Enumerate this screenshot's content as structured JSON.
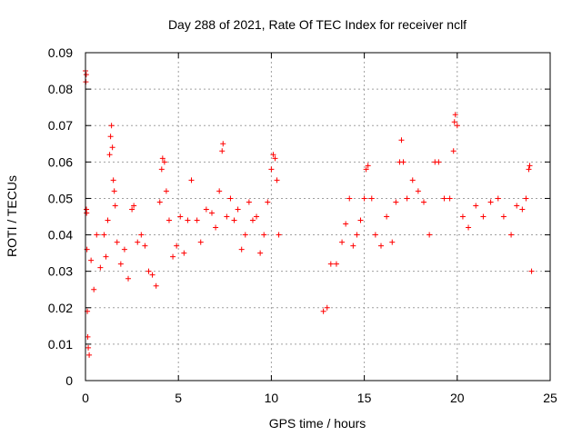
{
  "chart_data": {
    "type": "scatter",
    "title": "Day 288 of 2021, Rate Of TEC Index for receiver nclf",
    "xlabel": "GPS time / hours",
    "ylabel": "ROTI / TECUs",
    "xlim": [
      0,
      25
    ],
    "ylim": [
      0,
      0.09
    ],
    "x_ticks": [
      0,
      5,
      10,
      15,
      20,
      25
    ],
    "x_tick_labels": [
      "0",
      "5",
      "10",
      "15",
      "20",
      "25"
    ],
    "y_ticks": [
      0,
      0.01,
      0.02,
      0.03,
      0.04,
      0.05,
      0.06,
      0.07,
      0.08,
      0.09
    ],
    "y_tick_labels": [
      "0",
      "0.01",
      "0.02",
      "0.03",
      "0.04",
      "0.05",
      "0.06",
      "0.07",
      "0.08",
      "0.09"
    ],
    "grid": true,
    "marker": "+",
    "series_color": "#ff0000",
    "data_gap_hours": [
      10.5,
      12.7
    ],
    "series": [
      {
        "name": "ROTI",
        "points": [
          [
            0.0,
            0.085
          ],
          [
            0.02,
            0.082
          ],
          [
            0.04,
            0.084
          ],
          [
            0.05,
            0.047
          ],
          [
            0.06,
            0.046
          ],
          [
            0.08,
            0.036
          ],
          [
            0.1,
            0.019
          ],
          [
            0.12,
            0.012
          ],
          [
            0.15,
            0.009
          ],
          [
            0.2,
            0.007
          ],
          [
            0.3,
            0.033
          ],
          [
            0.45,
            0.025
          ],
          [
            0.6,
            0.04
          ],
          [
            0.8,
            0.031
          ],
          [
            1.0,
            0.04
          ],
          [
            1.1,
            0.034
          ],
          [
            1.2,
            0.044
          ],
          [
            1.3,
            0.062
          ],
          [
            1.35,
            0.067
          ],
          [
            1.4,
            0.07
          ],
          [
            1.45,
            0.064
          ],
          [
            1.5,
            0.055
          ],
          [
            1.55,
            0.052
          ],
          [
            1.6,
            0.048
          ],
          [
            1.7,
            0.038
          ],
          [
            1.9,
            0.032
          ],
          [
            2.1,
            0.036
          ],
          [
            2.3,
            0.028
          ],
          [
            2.5,
            0.047
          ],
          [
            2.6,
            0.048
          ],
          [
            2.8,
            0.038
          ],
          [
            3.0,
            0.04
          ],
          [
            3.2,
            0.037
          ],
          [
            3.4,
            0.03
          ],
          [
            3.6,
            0.029
          ],
          [
            3.8,
            0.026
          ],
          [
            4.0,
            0.049
          ],
          [
            4.1,
            0.058
          ],
          [
            4.15,
            0.061
          ],
          [
            4.25,
            0.06
          ],
          [
            4.35,
            0.052
          ],
          [
            4.5,
            0.044
          ],
          [
            4.7,
            0.034
          ],
          [
            4.9,
            0.037
          ],
          [
            5.1,
            0.045
          ],
          [
            5.3,
            0.035
          ],
          [
            5.5,
            0.044
          ],
          [
            5.7,
            0.055
          ],
          [
            6.0,
            0.044
          ],
          [
            6.2,
            0.038
          ],
          [
            6.5,
            0.047
          ],
          [
            6.8,
            0.046
          ],
          [
            7.0,
            0.042
          ],
          [
            7.2,
            0.052
          ],
          [
            7.35,
            0.063
          ],
          [
            7.4,
            0.065
          ],
          [
            7.6,
            0.045
          ],
          [
            7.8,
            0.05
          ],
          [
            8.0,
            0.044
          ],
          [
            8.2,
            0.047
          ],
          [
            8.4,
            0.036
          ],
          [
            8.6,
            0.04
          ],
          [
            8.8,
            0.049
          ],
          [
            9.0,
            0.044
          ],
          [
            9.2,
            0.045
          ],
          [
            9.4,
            0.035
          ],
          [
            9.6,
            0.04
          ],
          [
            9.8,
            0.049
          ],
          [
            10.0,
            0.058
          ],
          [
            10.1,
            0.062
          ],
          [
            10.2,
            0.061
          ],
          [
            10.3,
            0.055
          ],
          [
            10.4,
            0.04
          ],
          [
            12.8,
            0.019
          ],
          [
            13.0,
            0.02
          ],
          [
            13.2,
            0.032
          ],
          [
            13.5,
            0.032
          ],
          [
            13.8,
            0.038
          ],
          [
            14.0,
            0.043
          ],
          [
            14.2,
            0.05
          ],
          [
            14.4,
            0.037
          ],
          [
            14.6,
            0.04
          ],
          [
            14.8,
            0.044
          ],
          [
            15.0,
            0.05
          ],
          [
            15.1,
            0.058
          ],
          [
            15.2,
            0.059
          ],
          [
            15.4,
            0.05
          ],
          [
            15.6,
            0.04
          ],
          [
            15.9,
            0.037
          ],
          [
            16.2,
            0.045
          ],
          [
            16.5,
            0.038
          ],
          [
            16.7,
            0.049
          ],
          [
            16.9,
            0.06
          ],
          [
            17.0,
            0.066
          ],
          [
            17.1,
            0.06
          ],
          [
            17.3,
            0.05
          ],
          [
            17.6,
            0.055
          ],
          [
            17.9,
            0.052
          ],
          [
            18.2,
            0.049
          ],
          [
            18.5,
            0.04
          ],
          [
            18.8,
            0.06
          ],
          [
            19.0,
            0.06
          ],
          [
            19.3,
            0.05
          ],
          [
            19.6,
            0.05
          ],
          [
            19.8,
            0.063
          ],
          [
            19.85,
            0.071
          ],
          [
            19.9,
            0.073
          ],
          [
            20.0,
            0.07
          ],
          [
            20.3,
            0.045
          ],
          [
            20.6,
            0.042
          ],
          [
            21.0,
            0.048
          ],
          [
            21.4,
            0.045
          ],
          [
            21.8,
            0.049
          ],
          [
            22.2,
            0.05
          ],
          [
            22.5,
            0.045
          ],
          [
            22.9,
            0.04
          ],
          [
            23.2,
            0.048
          ],
          [
            23.5,
            0.047
          ],
          [
            23.7,
            0.05
          ],
          [
            23.85,
            0.058
          ],
          [
            23.9,
            0.059
          ],
          [
            24.0,
            0.03
          ]
        ]
      }
    ]
  }
}
